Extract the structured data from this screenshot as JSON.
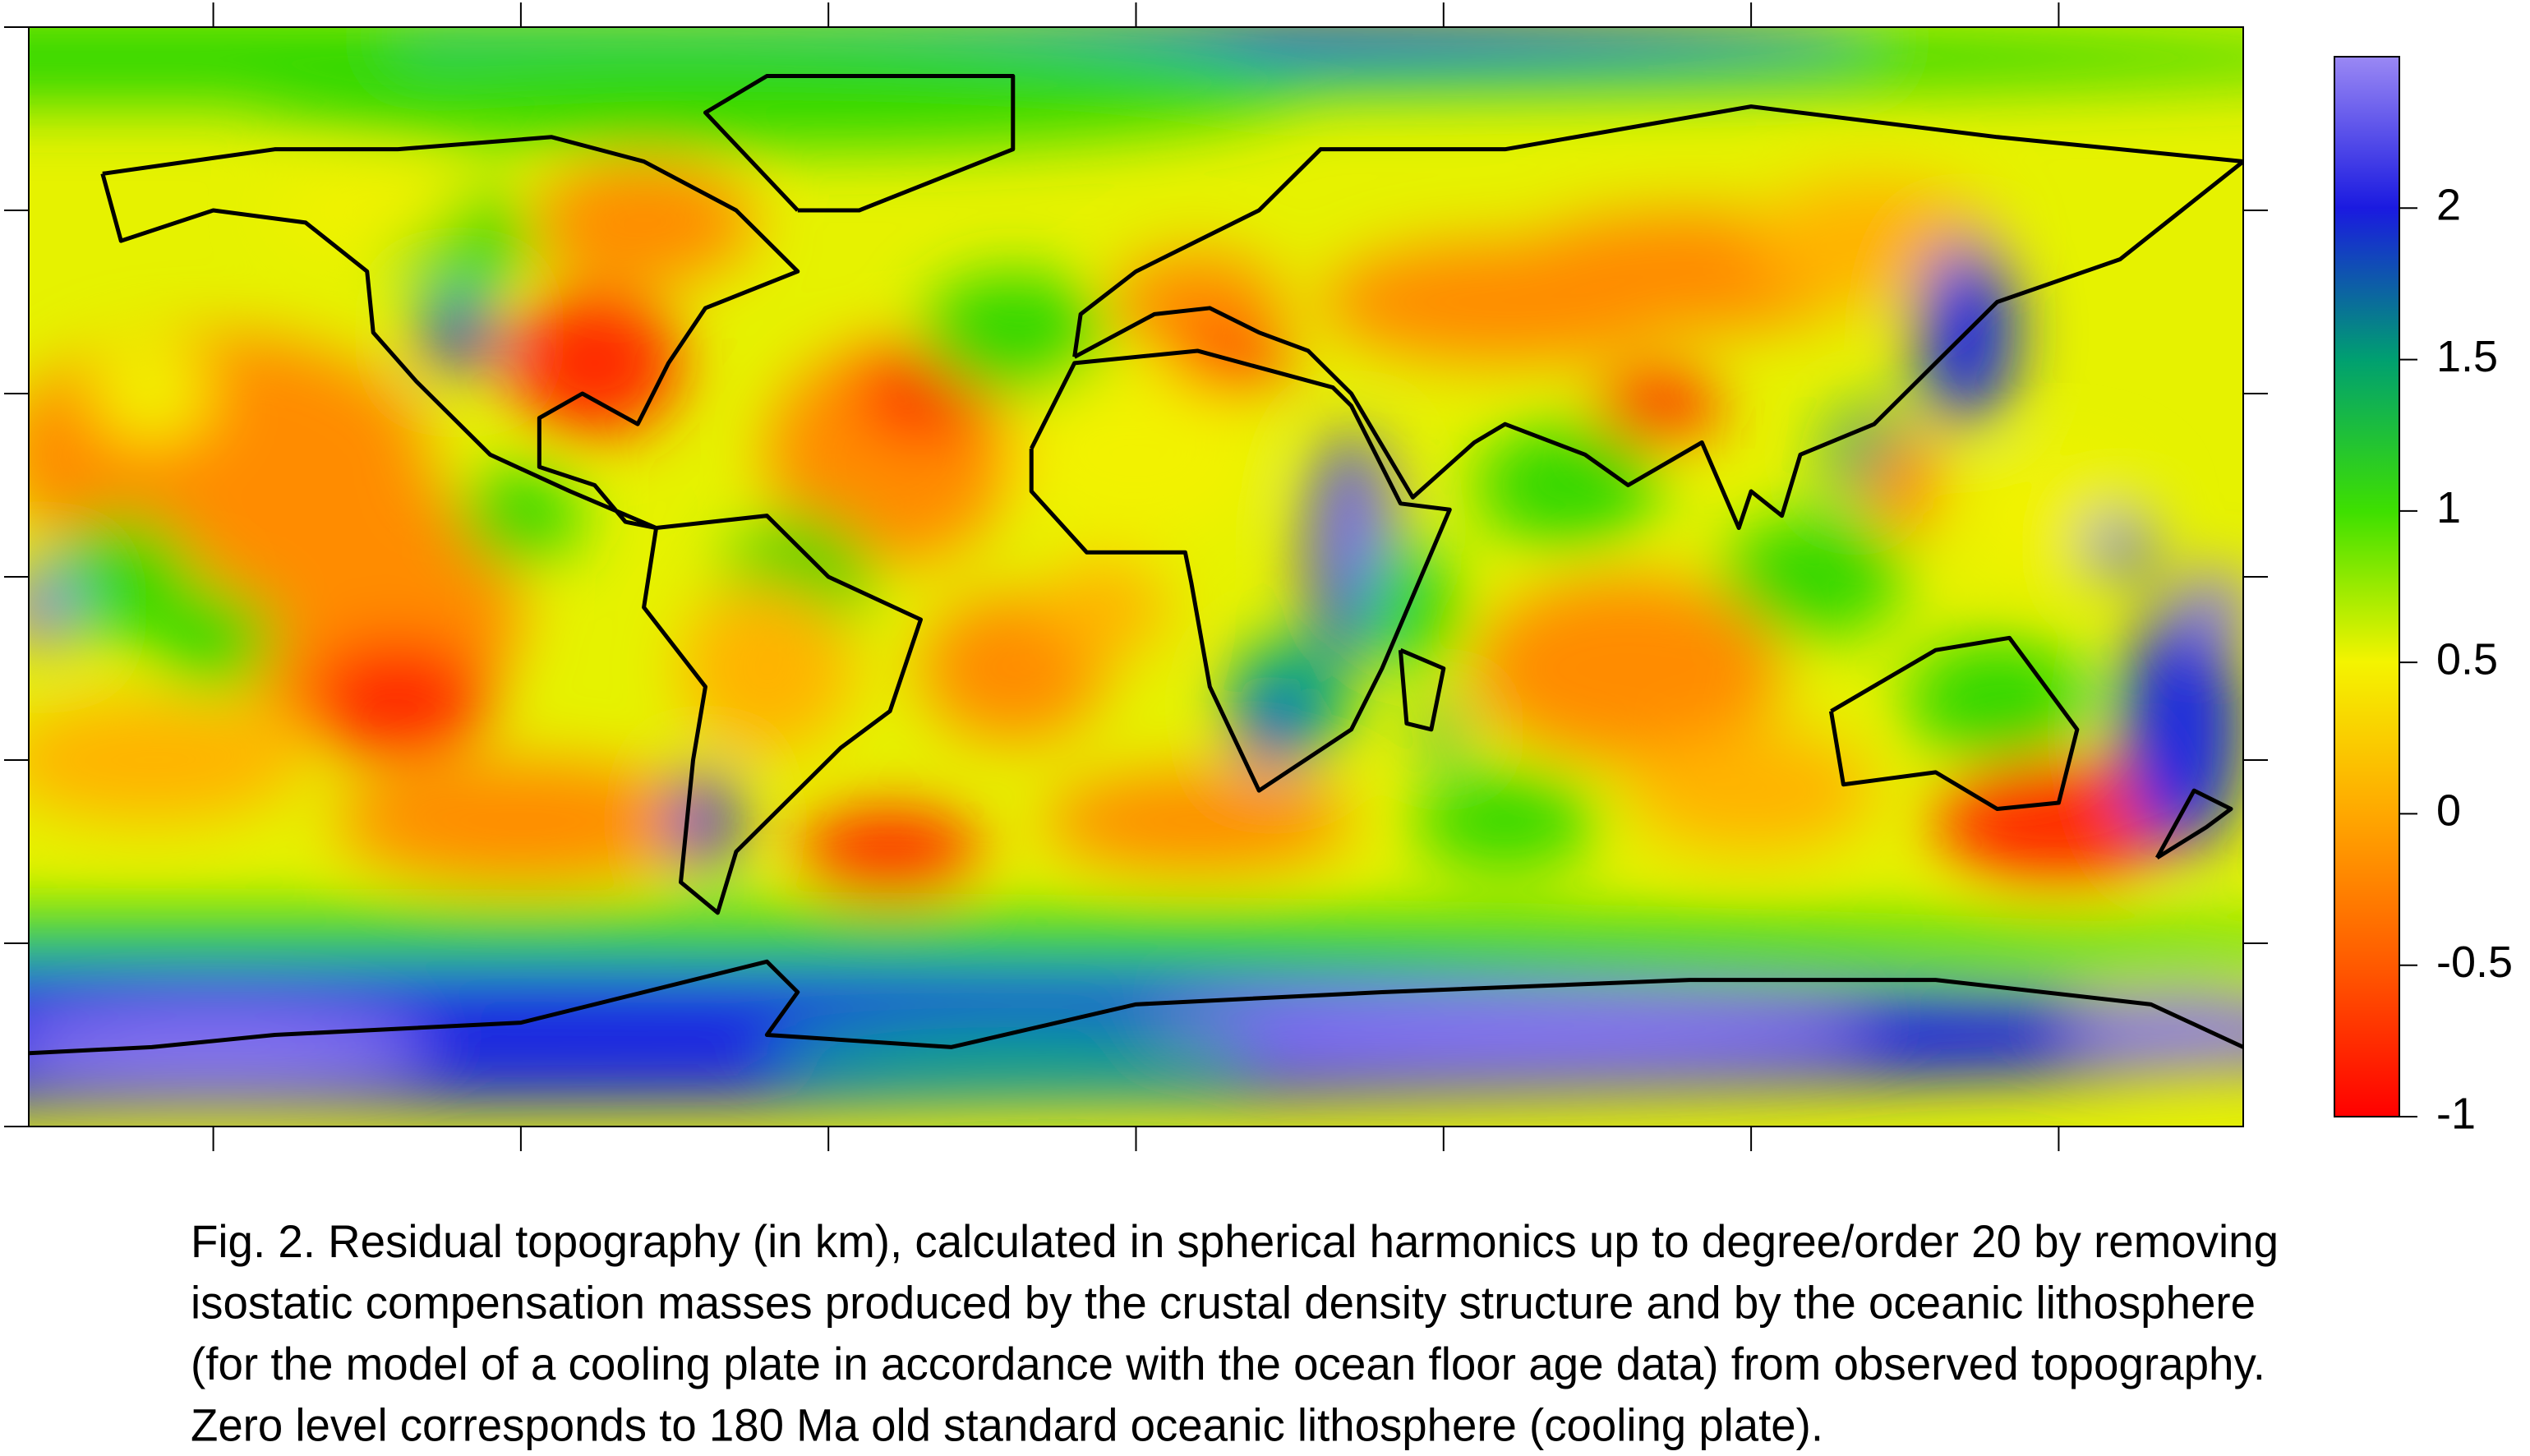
{
  "colorbar": {
    "lim": [
      -1,
      2.5
    ],
    "ticks": [
      -1,
      -0.5,
      0,
      0.5,
      1,
      1.5,
      2
    ]
  },
  "caption": [
    "Fig. 2. Residual topography (in km), calculated in spherical harmonics up to degree/order 20 by removing",
    "isostatic compensation masses produced by the crustal density structure and by the oceanic lithosphere",
    "(for the model of a cooling plate in accordance with the ocean floor age data) from observed topography.",
    "Zero level corresponds to 180 Ma old standard oceanic lithosphere (cooling plate)."
  ]
}
